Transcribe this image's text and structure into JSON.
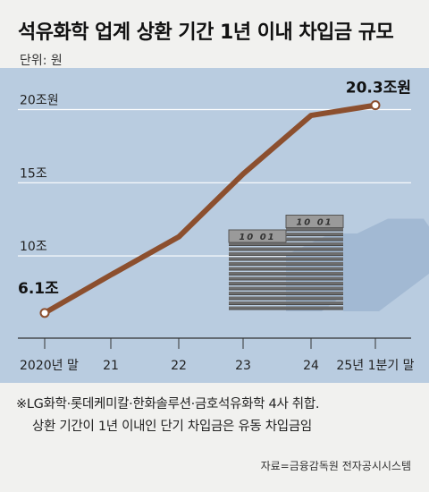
{
  "title": "석유화학 업계 상환 기간 1년 이내 차입금 규모",
  "unit_label": "단위: 원",
  "chart_data": {
    "type": "line",
    "title": "석유화학 업계 상환 기간 1년 이내 차입금 규모",
    "ylabel": "단위: 원",
    "categories": [
      "2020년 말",
      "21",
      "22",
      "23",
      "24",
      "25년 1분기 말"
    ],
    "series": [
      {
        "values": [
          6.1,
          8.7,
          11.3,
          15.6,
          19.6,
          20.3
        ]
      }
    ],
    "y_ticks": [
      {
        "value": 10,
        "label": "10조"
      },
      {
        "value": 15,
        "label": "15조"
      },
      {
        "value": 20,
        "label": "20조원"
      }
    ],
    "ylim": [
      4.5,
      21.5
    ],
    "annotations": {
      "start": "6.1조",
      "end": "20.3조원"
    },
    "grid": true,
    "line_color": "#8c4f2e"
  },
  "footnote": {
    "line1": "※LG화학·롯데케미칼·한화솔루션·금호석유화학 4사 취합.",
    "line2": "상환 기간이 1년 이내인 단기 차입금은 유동 차입금임"
  },
  "source": "자료=금융감독원 전자공시시스템",
  "illustration": {
    "bill_label": "10",
    "name": "money-stack-icon"
  }
}
